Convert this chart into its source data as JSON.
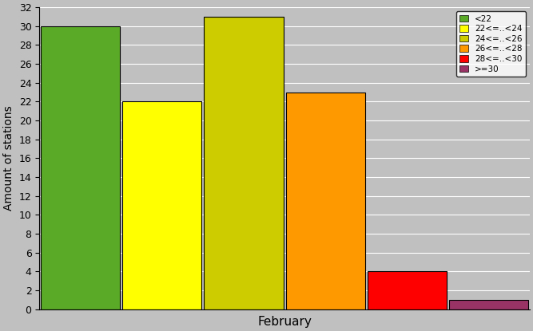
{
  "xlabel": "February",
  "ylabel": "Amount of stations",
  "categories": [
    "<22",
    "22<=..<24",
    "24<=..<26",
    "26<=..<28",
    "28<=..<30",
    ">=30"
  ],
  "values": [
    30,
    22,
    31,
    23,
    4,
    1
  ],
  "colors": [
    "#5aaa28",
    "#ffff00",
    "#cccc00",
    "#ff9900",
    "#ff0000",
    "#993366"
  ],
  "ylim": [
    0,
    32
  ],
  "yticks": [
    0,
    2,
    4,
    6,
    8,
    10,
    12,
    14,
    16,
    18,
    20,
    22,
    24,
    26,
    28,
    30,
    32
  ],
  "background_color": "#c0c0c0",
  "legend_labels": [
    "<22",
    "22<=..<24",
    "24<=..<26",
    "26<=..<28",
    "28<=..<30",
    ">=30"
  ],
  "bar_edge_color": "#000000",
  "bar_width": 0.97,
  "figsize": [
    6.67,
    4.15
  ],
  "dpi": 100
}
